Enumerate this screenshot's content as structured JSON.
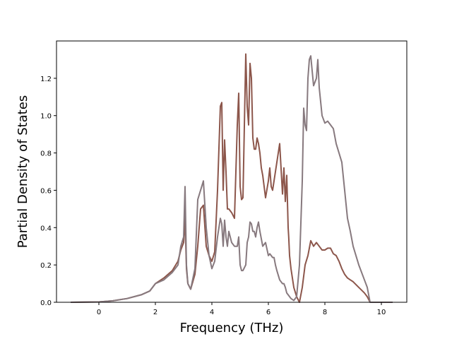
{
  "chart_data": {
    "type": "line",
    "title": "",
    "xlabel": "Frequency (THz)",
    "ylabel": "Partial Density of States",
    "xlim": [
      -1.5,
      10.9
    ],
    "ylim": [
      0,
      1.4
    ],
    "xticks": [
      0,
      2,
      4,
      6,
      8,
      10
    ],
    "yticks": [
      0.0,
      0.2,
      0.4,
      0.6,
      0.8,
      1.0,
      1.2
    ],
    "xtick_labels": [
      "0",
      "2",
      "4",
      "6",
      "8",
      "10"
    ],
    "ytick_labels": [
      "0.0",
      "0.2",
      "0.4",
      "0.6",
      "0.8",
      "1.0",
      "1.2"
    ],
    "grid": false,
    "legend": "none",
    "series": [
      {
        "color": "#8c564b",
        "x": [
          -1.0,
          0.0,
          0.5,
          1.0,
          1.5,
          1.8,
          2.0,
          2.3,
          2.6,
          2.8,
          2.9,
          3.0,
          3.05,
          3.1,
          3.15,
          3.25,
          3.4,
          3.5,
          3.6,
          3.7,
          3.8,
          3.9,
          4.0,
          4.1,
          4.2,
          4.3,
          4.35,
          4.4,
          4.45,
          4.5,
          4.55,
          4.6,
          4.7,
          4.8,
          4.9,
          4.95,
          5.0,
          5.05,
          5.1,
          5.2,
          5.25,
          5.3,
          5.35,
          5.4,
          5.45,
          5.5,
          5.55,
          5.6,
          5.65,
          5.7,
          5.75,
          5.8,
          5.9,
          6.0,
          6.05,
          6.1,
          6.15,
          6.2,
          6.25,
          6.3,
          6.4,
          6.5,
          6.55,
          6.6,
          6.65,
          6.7,
          6.72,
          6.75,
          6.8,
          6.9,
          7.0,
          7.1,
          7.2,
          7.3,
          7.4,
          7.5,
          7.6,
          7.7,
          7.8,
          7.9,
          8.0,
          8.1,
          8.2,
          8.3,
          8.4,
          8.5,
          8.6,
          8.7,
          8.8,
          8.9,
          9.0,
          9.2,
          9.4,
          9.5,
          9.6,
          10.0,
          10.4
        ],
        "y": [
          0.0,
          0.002,
          0.008,
          0.02,
          0.04,
          0.06,
          0.1,
          0.13,
          0.17,
          0.22,
          0.28,
          0.32,
          0.45,
          0.18,
          0.1,
          0.07,
          0.15,
          0.3,
          0.5,
          0.52,
          0.3,
          0.25,
          0.22,
          0.27,
          0.6,
          1.05,
          1.07,
          0.6,
          0.87,
          0.7,
          0.5,
          0.5,
          0.48,
          0.45,
          0.95,
          1.12,
          0.62,
          0.55,
          0.56,
          1.33,
          1.05,
          0.95,
          1.28,
          1.2,
          0.88,
          0.82,
          0.82,
          0.88,
          0.85,
          0.8,
          0.72,
          0.68,
          0.56,
          0.65,
          0.72,
          0.62,
          0.6,
          0.65,
          0.7,
          0.75,
          0.85,
          0.58,
          0.72,
          0.54,
          0.68,
          0.4,
          0.35,
          0.25,
          0.18,
          0.08,
          0.03,
          0.0,
          0.08,
          0.2,
          0.25,
          0.33,
          0.3,
          0.32,
          0.3,
          0.28,
          0.28,
          0.29,
          0.29,
          0.26,
          0.25,
          0.22,
          0.18,
          0.15,
          0.13,
          0.12,
          0.11,
          0.08,
          0.05,
          0.03,
          0.0,
          0.0,
          0.0
        ]
      },
      {
        "color": "#87797e",
        "x": [
          -1.0,
          0.0,
          0.5,
          1.0,
          1.5,
          1.8,
          2.0,
          2.3,
          2.6,
          2.8,
          2.9,
          3.0,
          3.05,
          3.1,
          3.15,
          3.25,
          3.4,
          3.5,
          3.6,
          3.7,
          3.8,
          3.9,
          4.0,
          4.1,
          4.2,
          4.3,
          4.35,
          4.4,
          4.45,
          4.5,
          4.55,
          4.6,
          4.7,
          4.8,
          4.9,
          4.95,
          5.0,
          5.05,
          5.1,
          5.2,
          5.25,
          5.3,
          5.35,
          5.4,
          5.45,
          5.5,
          5.55,
          5.6,
          5.65,
          5.7,
          5.75,
          5.8,
          5.9,
          6.0,
          6.05,
          6.1,
          6.15,
          6.2,
          6.25,
          6.3,
          6.4,
          6.5,
          6.55,
          6.6,
          6.65,
          6.7,
          6.8,
          6.9,
          7.0,
          7.1,
          7.2,
          7.25,
          7.3,
          7.35,
          7.4,
          7.45,
          7.5,
          7.6,
          7.7,
          7.75,
          7.8,
          7.9,
          8.0,
          8.1,
          8.2,
          8.3,
          8.4,
          8.5,
          8.6,
          8.7,
          8.8,
          8.9,
          9.0,
          9.2,
          9.4,
          9.5,
          9.6,
          10.0,
          10.4
        ],
        "y": [
          0.0,
          0.002,
          0.008,
          0.02,
          0.04,
          0.06,
          0.1,
          0.12,
          0.16,
          0.2,
          0.3,
          0.35,
          0.62,
          0.2,
          0.1,
          0.07,
          0.18,
          0.55,
          0.6,
          0.65,
          0.4,
          0.25,
          0.18,
          0.22,
          0.35,
          0.45,
          0.42,
          0.3,
          0.44,
          0.35,
          0.3,
          0.38,
          0.32,
          0.3,
          0.3,
          0.35,
          0.2,
          0.17,
          0.17,
          0.2,
          0.32,
          0.35,
          0.43,
          0.42,
          0.38,
          0.38,
          0.35,
          0.4,
          0.43,
          0.38,
          0.34,
          0.3,
          0.32,
          0.25,
          0.26,
          0.25,
          0.24,
          0.24,
          0.2,
          0.17,
          0.12,
          0.1,
          0.1,
          0.08,
          0.05,
          0.04,
          0.02,
          0.01,
          0.03,
          0.2,
          0.65,
          1.04,
          0.95,
          0.92,
          1.2,
          1.3,
          1.32,
          1.16,
          1.2,
          1.3,
          1.15,
          1.0,
          0.96,
          0.97,
          0.95,
          0.93,
          0.85,
          0.8,
          0.75,
          0.6,
          0.45,
          0.38,
          0.3,
          0.2,
          0.12,
          0.08,
          0.0,
          0.0,
          0.0
        ]
      }
    ]
  }
}
